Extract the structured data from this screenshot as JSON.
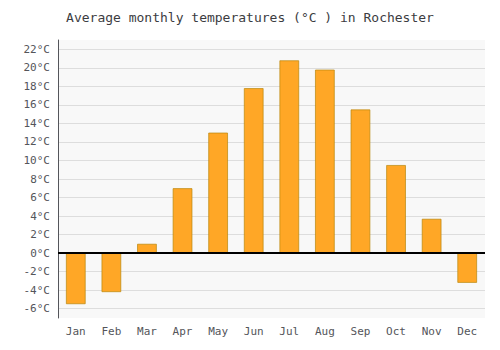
{
  "chart_data": {
    "type": "bar",
    "title": "Average monthly temperatures (°C ) in Rochester",
    "categories": [
      "Jan",
      "Feb",
      "Mar",
      "Apr",
      "May",
      "Jun",
      "Jul",
      "Aug",
      "Sep",
      "Oct",
      "Nov",
      "Dec"
    ],
    "values": [
      -5.5,
      -4.2,
      1.0,
      7.0,
      13.0,
      17.8,
      20.8,
      19.8,
      15.5,
      9.5,
      3.7,
      -3.2
    ],
    "color": "#FFA726",
    "ylim": [
      -7,
      23
    ],
    "yticks": [
      {
        "value": -6,
        "label": "-6°C"
      },
      {
        "value": -4,
        "label": "-4°C"
      },
      {
        "value": -2,
        "label": "-2°C"
      },
      {
        "value": 0,
        "label": "0°C"
      },
      {
        "value": 2,
        "label": "2°C"
      },
      {
        "value": 4,
        "label": "4°C"
      },
      {
        "value": 6,
        "label": "6°C"
      },
      {
        "value": 8,
        "label": "8°C"
      },
      {
        "value": 10,
        "label": "10°C"
      },
      {
        "value": 12,
        "label": "12°C"
      },
      {
        "value": 14,
        "label": "14°C"
      },
      {
        "value": 16,
        "label": "16°C"
      },
      {
        "value": 18,
        "label": "18°C"
      },
      {
        "value": 20,
        "label": "20°C"
      },
      {
        "value": 22,
        "label": "22°C"
      }
    ],
    "grid": true
  }
}
